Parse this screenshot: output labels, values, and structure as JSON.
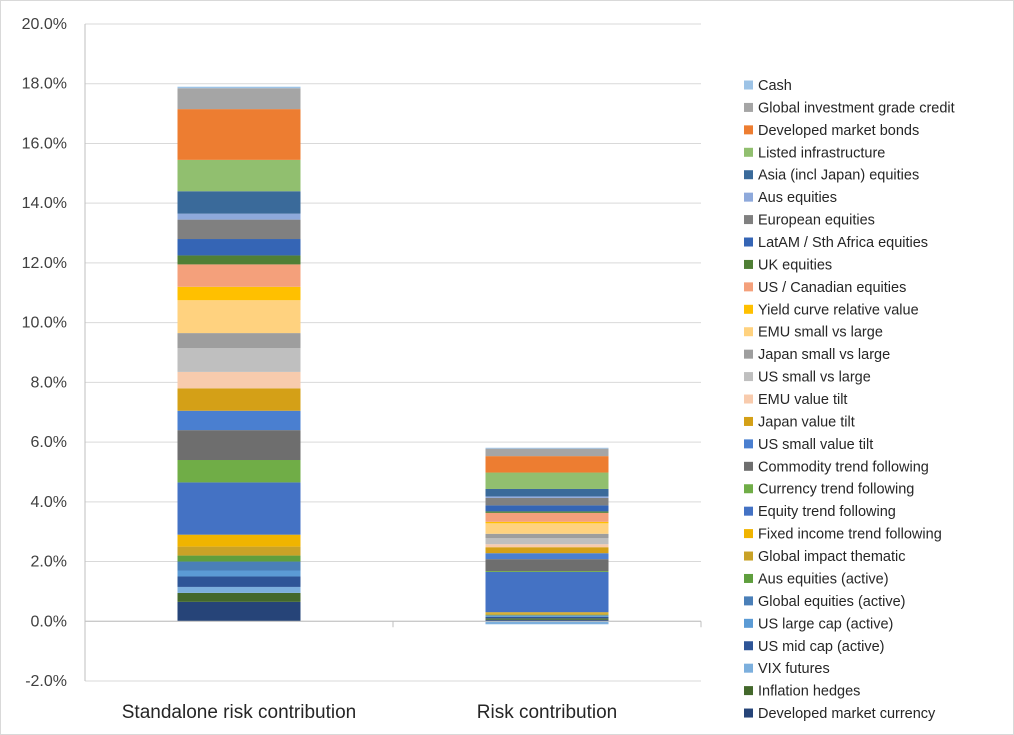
{
  "chart_data": {
    "type": "bar",
    "stacked": true,
    "categories": [
      "Standalone risk contribution",
      "Risk contribution"
    ],
    "ylim": [
      -0.02,
      0.2
    ],
    "ytick_step": 0.02,
    "ytick_format": "percent_1dp",
    "grid": true,
    "legend_position": "right",
    "title": "",
    "xlabel": "",
    "ylabel": "",
    "series": [
      {
        "name": "Developed market currency",
        "color": "#264478",
        "values": [
          0.0065,
          0.0005
        ]
      },
      {
        "name": "Inflation hedges",
        "color": "#43682b",
        "values": [
          0.003,
          0.0005
        ]
      },
      {
        "name": "VIX futures",
        "color": "#7cafdd",
        "values": [
          0.002,
          -0.001
        ]
      },
      {
        "name": "US mid cap (active)",
        "color": "#2e5597",
        "values": [
          0.0035,
          0.0005
        ]
      },
      {
        "name": "US large cap (active)",
        "color": "#5b9bd5",
        "values": [
          0.002,
          0.0003
        ]
      },
      {
        "name": "Global equities (active)",
        "color": "#4a7fb8",
        "values": [
          0.003,
          0.0002
        ]
      },
      {
        "name": "Aus equities (active)",
        "color": "#5f9e3d",
        "values": [
          0.002,
          0.0002
        ]
      },
      {
        "name": "Global impact thematic",
        "color": "#c9a227",
        "values": [
          0.003,
          0.0005
        ]
      },
      {
        "name": "Fixed income trend following",
        "color": "#f0b400",
        "values": [
          0.004,
          0.0003
        ]
      },
      {
        "name": "Equity trend following",
        "color": "#4472c4",
        "values": [
          0.0175,
          0.0135
        ]
      },
      {
        "name": "Currency trend following",
        "color": "#70ad47",
        "values": [
          0.0075,
          0.0003
        ]
      },
      {
        "name": "Commodity trend following",
        "color": "#6e6e6e",
        "values": [
          0.01,
          0.004
        ]
      },
      {
        "name": "US small value tilt",
        "color": "#4a7fd0",
        "values": [
          0.0065,
          0.002
        ]
      },
      {
        "name": "Japan value tilt",
        "color": "#d4a017",
        "values": [
          0.0075,
          0.002
        ]
      },
      {
        "name": "EMU value tilt",
        "color": "#f8cbad",
        "values": [
          0.0055,
          0.001
        ]
      },
      {
        "name": "US small vs large",
        "color": "#bfbfbf",
        "values": [
          0.008,
          0.002
        ]
      },
      {
        "name": "Japan small vs large",
        "color": "#9e9e9e",
        "values": [
          0.005,
          0.0015
        ]
      },
      {
        "name": "EMU small vs large",
        "color": "#ffd27f",
        "values": [
          0.011,
          0.0035
        ]
      },
      {
        "name": "Yield curve relative value",
        "color": "#ffc000",
        "values": [
          0.0045,
          0.0005
        ]
      },
      {
        "name": "US / Canadian equities",
        "color": "#f4a07b",
        "values": [
          0.0075,
          0.003
        ]
      },
      {
        "name": "UK equities",
        "color": "#4f7f35",
        "values": [
          0.003,
          0.0005
        ]
      },
      {
        "name": "LatAM / Sth Africa equities",
        "color": "#3565b5",
        "values": [
          0.0055,
          0.002
        ]
      },
      {
        "name": "European equities",
        "color": "#808080",
        "values": [
          0.0065,
          0.0025
        ]
      },
      {
        "name": "Aus equities",
        "color": "#8ea9db",
        "values": [
          0.002,
          0.0005
        ]
      },
      {
        "name": "Asia (incl Japan) equities",
        "color": "#3a6a9a",
        "values": [
          0.0075,
          0.0025
        ]
      },
      {
        "name": "Listed infrastructure",
        "color": "#91bf6f",
        "values": [
          0.0105,
          0.0055
        ]
      },
      {
        "name": "Developed market bonds",
        "color": "#ed7d31",
        "values": [
          0.017,
          0.0055
        ]
      },
      {
        "name": "Global investment grade credit",
        "color": "#a5a5a5",
        "values": [
          0.007,
          0.0025
        ]
      },
      {
        "name": "Cash",
        "color": "#9dc3e6",
        "values": [
          0.0005,
          0.0003
        ]
      }
    ]
  }
}
